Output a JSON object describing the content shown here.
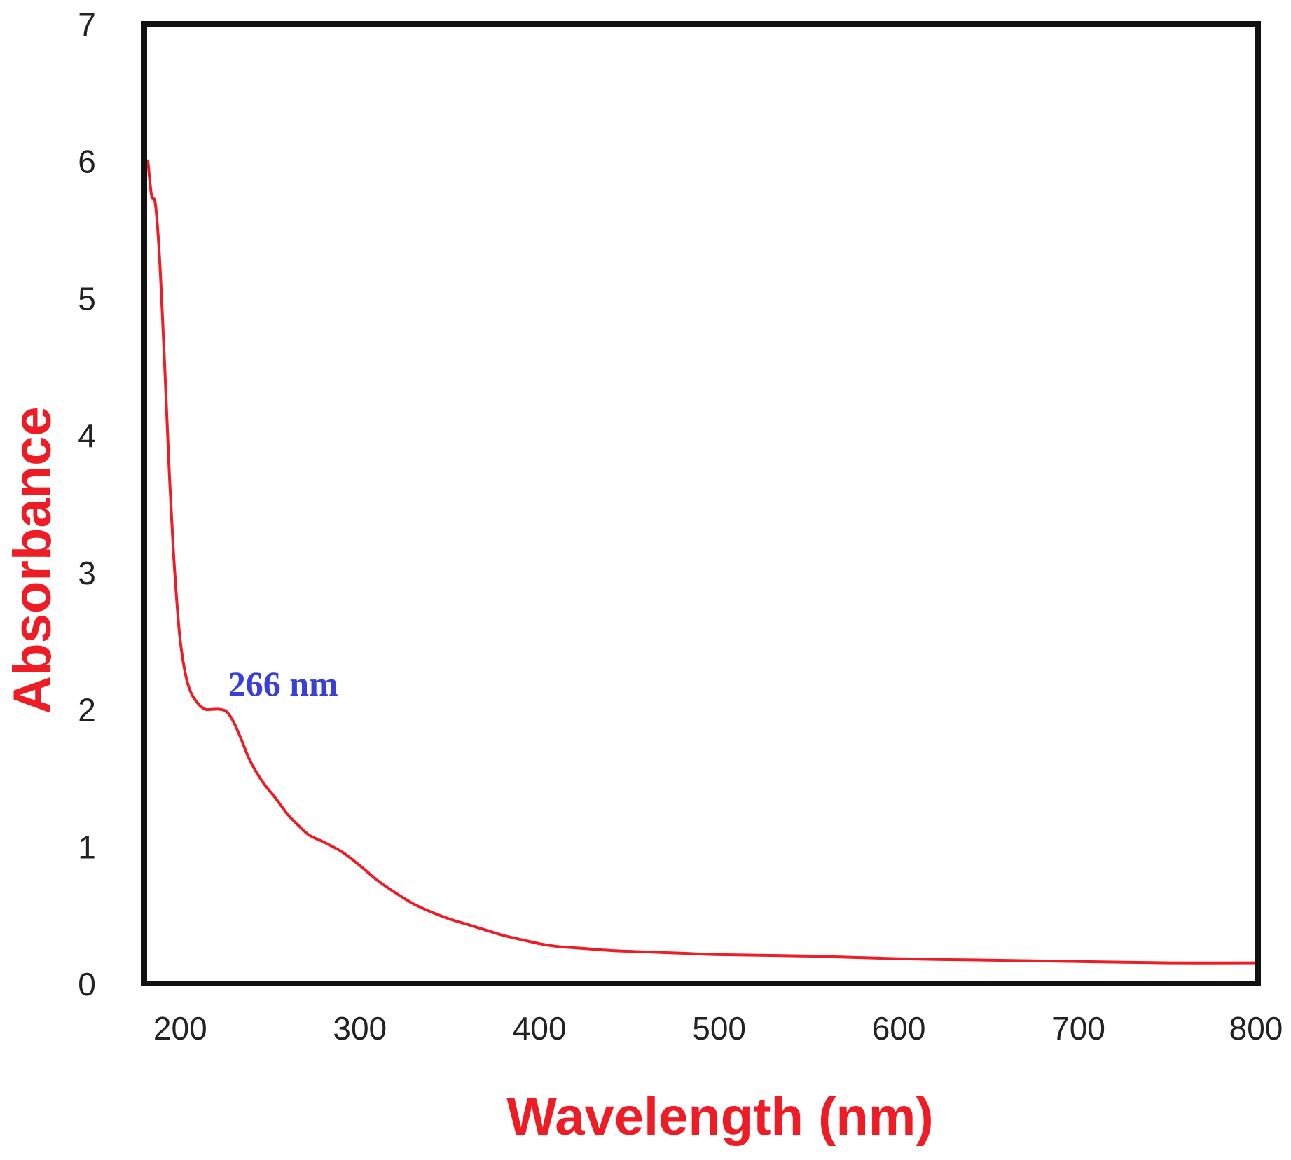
{
  "chart_data": {
    "type": "line",
    "title": "",
    "xlabel": "Wavelength (nm)",
    "ylabel": "Absorbance",
    "xlim": [
      180,
      800
    ],
    "ylim": [
      0,
      7
    ],
    "xticks": [
      200,
      300,
      400,
      500,
      600,
      700,
      800
    ],
    "yticks": [
      0,
      1,
      2,
      3,
      4,
      5,
      6,
      7
    ],
    "grid": false,
    "legend": "none",
    "colors": {
      "series": "#ee1c25",
      "axis_title": "#ee1c25",
      "annotation": "#3a3fd6",
      "frame": "#111111"
    },
    "series": [
      {
        "name": "Absorbance",
        "x": [
          182,
          184,
          186,
          188,
          190,
          192,
          194,
          196,
          198,
          200,
          203,
          206,
          210,
          214,
          218,
          222,
          226,
          230,
          234,
          238,
          242,
          247,
          252,
          256,
          260,
          266,
          272,
          280,
          290,
          300,
          310,
          320,
          330,
          340,
          350,
          360,
          370,
          380,
          390,
          400,
          410,
          420,
          440,
          460,
          480,
          500,
          550,
          600,
          650,
          700,
          750,
          800
        ],
        "values": [
          6.0,
          5.75,
          5.7,
          5.4,
          4.9,
          4.3,
          3.7,
          3.2,
          2.8,
          2.5,
          2.25,
          2.12,
          2.04,
          2.0,
          2.0,
          2.0,
          1.98,
          1.9,
          1.78,
          1.65,
          1.55,
          1.45,
          1.37,
          1.3,
          1.23,
          1.15,
          1.08,
          1.03,
          0.96,
          0.86,
          0.75,
          0.66,
          0.58,
          0.52,
          0.47,
          0.43,
          0.39,
          0.35,
          0.32,
          0.29,
          0.27,
          0.26,
          0.24,
          0.23,
          0.22,
          0.21,
          0.2,
          0.18,
          0.17,
          0.16,
          0.15,
          0.15
        ]
      }
    ],
    "annotations": [
      {
        "text": "266 nm",
        "x": 222,
        "y": 2.1
      }
    ]
  }
}
